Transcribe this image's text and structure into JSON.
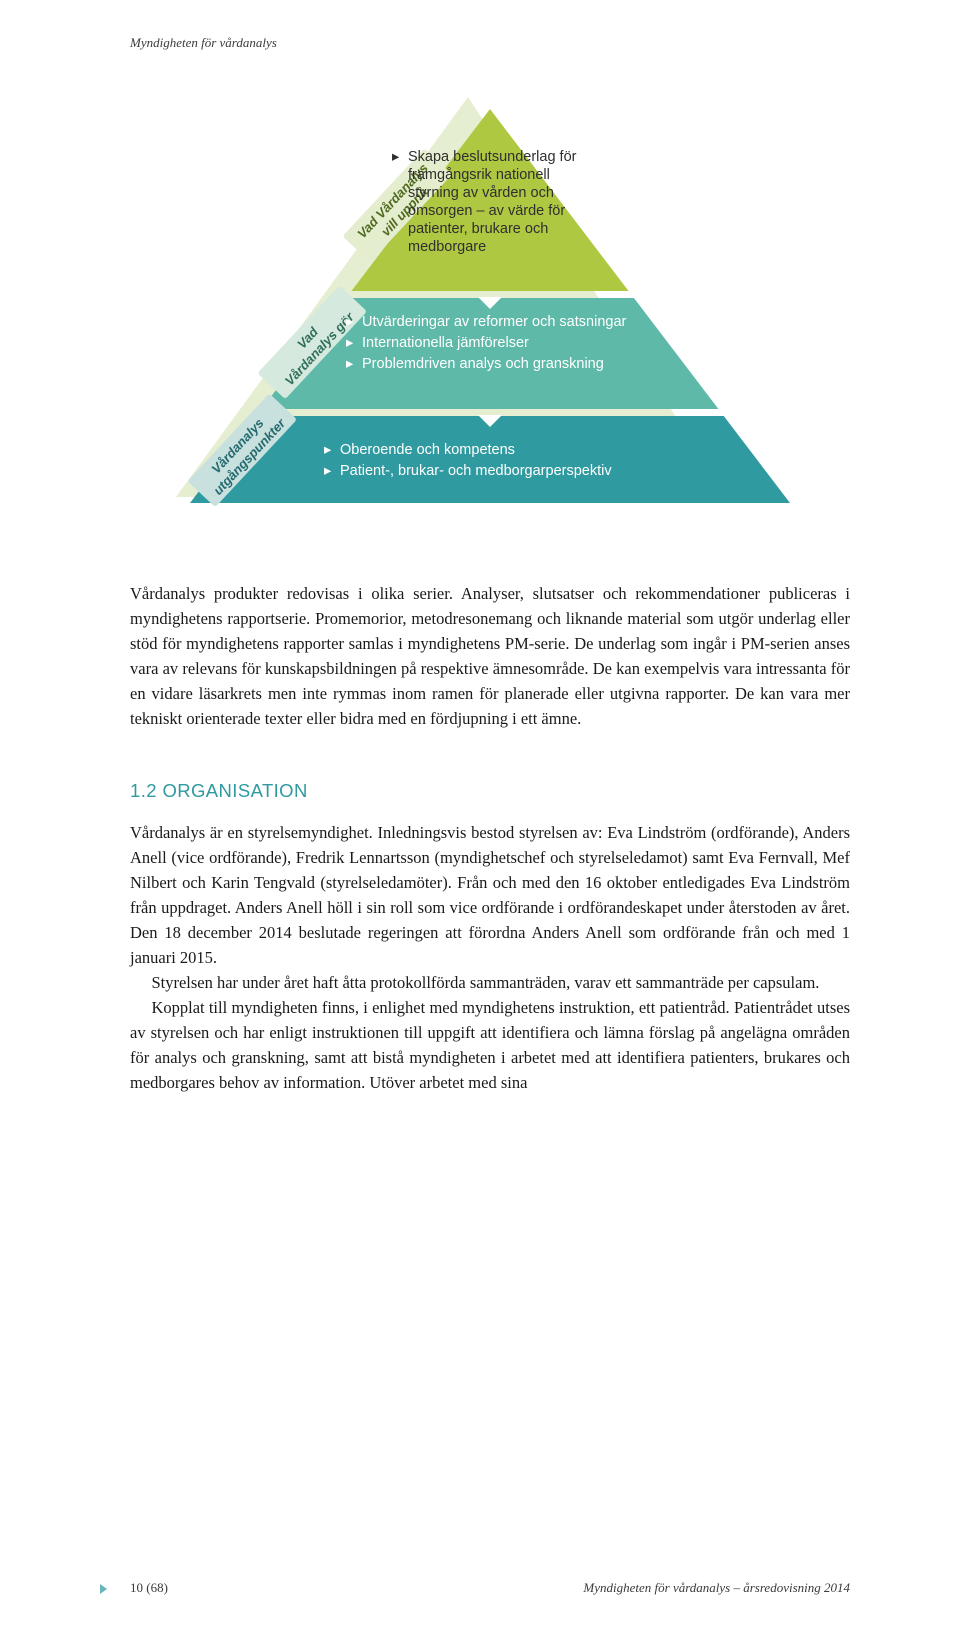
{
  "running_header": "Myndigheten för vårdanalys",
  "pyramid": {
    "bg_outline_color": "#e4edce",
    "levels": [
      {
        "label": "Vad Vårdanalys vill uppnå",
        "fill": "#aec842",
        "label_bg": "#e4edce",
        "label_text_color": "#506a20",
        "items": [
          "Skapa beslutsunderlag för framgångsrik nationell styrning av vården och omsorgen – av värde för patienter, brukare och medborgare"
        ]
      },
      {
        "label": "Vad Vårdanalys gör",
        "fill": "#5eb9a8",
        "label_bg": "#d5e9de",
        "label_text_color": "#2f6f5c",
        "items": [
          "Utvärderingar av reformer och satsningar",
          "Internationella jämförelser",
          "Problemdriven analys och granskning"
        ]
      },
      {
        "label": "Vårdanalys utgångspunkter",
        "fill": "#2f9aa0",
        "label_bg": "#c8e0de",
        "label_text_color": "#246a6e",
        "items": [
          "Oberoende och kompetens",
          "Patient-, brukar- och medborgarperspektiv"
        ]
      }
    ],
    "bullet_color_dark": "#3a3a3a",
    "text_color_dark": "#2f2f2f",
    "text_color_light": "#ffffff",
    "font_family": "Helvetica Neue, Arial, sans-serif"
  },
  "paragraphs": {
    "intro": "Vårdanalys produkter redovisas i olika serier. Analyser, slutsatser och rekommenda­tioner publiceras i myndighetens rapportserie. Promemorior, metodresonemang och liknande material som utgör underlag eller stöd för myndighetens rapporter samlas i myndighetens PM-serie. De underlag som ingår i PM-serien anses vara av relevans för kunskapsbildningen på respektive ämnesområde. De kan exempelvis vara intressanta för en vidare läsarkrets men inte rymmas inom ramen för planerade eller utgivna rapporter. De kan vara mer tekniskt orienterade texter eller bidra med en fördjupning i ett ämne.",
    "org1": "Vårdanalys är en styrelsemyndighet. Inledningsvis bestod styrelsen av: Eva Lindström (ordförande), Anders Anell (vice ordförande), Fredrik Lennartsson (myndighetschef och styrelseledamot) samt Eva Fernvall, Mef Nilbert och Karin Tengvald (styrelseledamöter). Från och med den 16 oktober entledigades Eva Lindström från uppdraget. Anders Anell höll i sin roll som vice ordförande i ordförandeskapet under återstoden av året. Den 18 december 2014 beslutade regeringen att förordna Anders Anell som ordförande från och med 1 januari 2015.",
    "org2": "Styrelsen har under året haft åtta protokollförda sammanträden, varav ett sammanträde per capsulam.",
    "org3": "Kopplat till myndigheten finns, i enlighet med myndighetens instruktion, ett patientråd. Patientrådet utses av styrelsen och har enligt instruktionen till uppgift att identifiera och lämna förslag på angelägna områden för analys och granskning, samt att bistå myndigheten i arbetet med att identifiera patienters, brukares och medborgares behov av information. Utöver arbetet med sina"
  },
  "section_heading": "1.2 ORGANISATION",
  "footer": {
    "left": "10 (68)",
    "right": "Myndigheten för vårdanalys – årsredovisning 2014"
  }
}
